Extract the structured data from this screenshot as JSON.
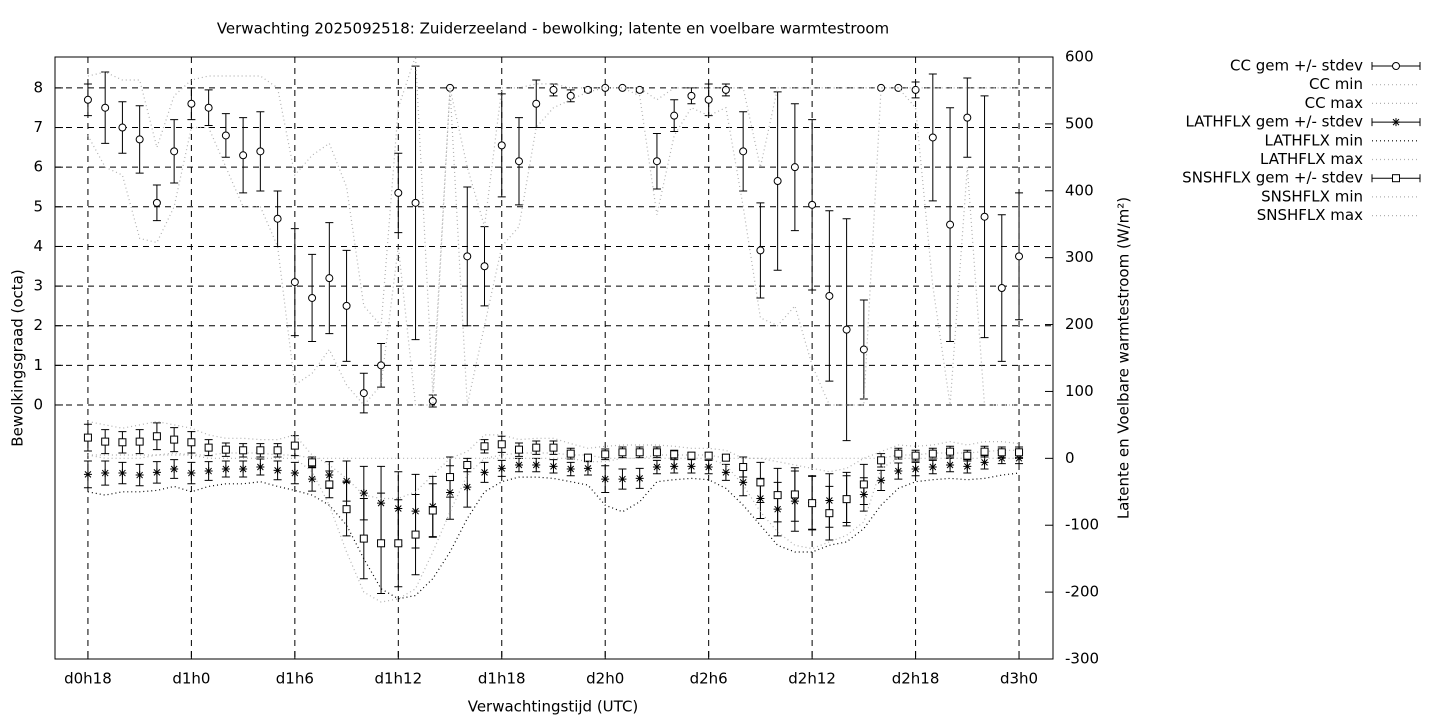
{
  "chart_data": {
    "type": "errorbar",
    "title": "Verwachting 2025092518: Zuiderzeeland - bewolking; latente en voelbare warmtestroom",
    "x_label": "Verwachtingstijd (UTC)",
    "y_label": "Bewolkingsgraad (octa)",
    "y2_label": "Latente en Voelbare warmtestroom (W/m²)",
    "x": [
      18,
      19,
      20,
      21,
      22,
      23,
      24,
      25,
      26,
      27,
      28,
      29,
      30,
      31,
      32,
      33,
      34,
      35,
      36,
      37,
      38,
      39,
      40,
      41,
      42,
      43,
      44,
      45,
      46,
      47,
      48,
      49,
      50,
      51,
      52,
      53,
      54,
      55,
      56,
      57,
      58,
      59,
      60,
      61,
      62,
      63,
      64,
      65,
      66,
      67,
      68,
      69,
      70,
      71,
      72
    ],
    "xlim": [
      16.09,
      73.97
    ],
    "xticks": [
      {
        "value": 18,
        "label": "d0h18"
      },
      {
        "value": 24,
        "label": "d1h0"
      },
      {
        "value": 30,
        "label": "d1h6"
      },
      {
        "value": 36,
        "label": "d1h12"
      },
      {
        "value": 42,
        "label": "d1h18"
      },
      {
        "value": 48,
        "label": "d2h0"
      },
      {
        "value": 54,
        "label": "d2h6"
      },
      {
        "value": 60,
        "label": "d2h12"
      },
      {
        "value": 66,
        "label": "d2h18"
      },
      {
        "value": 72,
        "label": "d3h0"
      }
    ],
    "ylim": [
      -6.41,
      8.78
    ],
    "yticks": [
      0,
      1,
      2,
      3,
      4,
      5,
      6,
      7,
      8
    ],
    "y2lim": [
      -300,
      600
    ],
    "y2ticks": [
      -300,
      -200,
      -100,
      0,
      100,
      200,
      300,
      400,
      500,
      600
    ],
    "grid": true,
    "legend": "top-right",
    "series": [
      {
        "name": "CC gem +/- stdev",
        "color": "#000000",
        "style": "errorbars",
        "marker": "circle",
        "values": [
          7.7,
          7.5,
          7.0,
          6.7,
          5.1,
          6.4,
          7.6,
          7.5,
          6.8,
          6.3,
          6.4,
          4.7,
          3.1,
          2.7,
          3.2,
          2.5,
          0.3,
          1.0,
          5.35,
          5.1,
          0.1,
          8.0,
          3.75,
          3.5,
          6.55,
          6.15,
          7.6,
          7.95,
          7.8,
          7.95,
          8.0,
          8.0,
          7.95,
          6.15,
          7.3,
          7.8,
          7.7,
          7.95,
          6.4,
          3.9,
          5.65,
          6.0,
          5.05,
          2.75,
          1.9,
          1.4,
          8.0,
          8.0,
          7.95,
          6.75,
          4.55,
          7.25,
          4.75,
          2.95,
          3.75
        ],
        "errors": [
          0.4,
          0.9,
          0.65,
          0.85,
          0.45,
          0.8,
          0.4,
          0.45,
          0.55,
          0.95,
          1.0,
          0.7,
          1.35,
          1.1,
          1.4,
          1.4,
          0.5,
          0.55,
          1.0,
          3.45,
          0.15,
          0,
          1.75,
          1.0,
          1.3,
          1.1,
          0.6,
          0.15,
          0.15,
          0.05,
          0,
          0,
          0.05,
          0.7,
          0.4,
          0.2,
          0.4,
          0.15,
          1.0,
          1.2,
          2.25,
          1.6,
          2.15,
          2.15,
          2.8,
          1.25,
          0,
          0,
          0.2,
          1.6,
          2.95,
          1.0,
          3.05,
          1.85,
          1.6
        ]
      },
      {
        "name": "CC min",
        "color": "#b0b0b0",
        "style": "dotted",
        "values": [
          6.8,
          6.0,
          5.8,
          4.2,
          4.1,
          5.0,
          7.0,
          7.0,
          6.0,
          5.0,
          5.0,
          4.0,
          0.5,
          0.8,
          1.4,
          0.5,
          0.0,
          0.5,
          4.0,
          0.0,
          0.0,
          8.0,
          0.0,
          2.0,
          4.0,
          4.5,
          7.0,
          7.5,
          7.7,
          7.9,
          8.0,
          8.0,
          7.8,
          4.8,
          6.8,
          7.5,
          7.3,
          7.5,
          5.0,
          2.2,
          2.0,
          2.5,
          1.0,
          0.0,
          0.0,
          0.0,
          8.0,
          8.0,
          7.5,
          3.0,
          0.0,
          6.0,
          0.0,
          0.0,
          0.0
        ]
      },
      {
        "name": "CC max",
        "color": "#b0b0b0",
        "style": "dotted",
        "values": [
          8.3,
          8.4,
          8.2,
          8.2,
          6.5,
          7.8,
          8.2,
          8.3,
          8.3,
          8.3,
          8.3,
          8.0,
          5.8,
          6.3,
          6.6,
          5.5,
          2.5,
          2.0,
          7.5,
          8.8,
          0.3,
          8.0,
          6.0,
          4.5,
          8.0,
          8.0,
          8.1,
          8.1,
          8.0,
          8.0,
          8.0,
          8.0,
          8.0,
          7.7,
          8.0,
          8.0,
          8.0,
          8.0,
          8.0,
          6.0,
          8.0,
          8.0,
          8.0,
          8.0,
          8.0,
          8.0,
          8.0,
          8.0,
          8.0,
          8.0,
          8.0,
          8.0,
          8.0,
          8.0,
          8.0
        ]
      },
      {
        "name": "LATHFLX gem +/- stdev",
        "color": "#000000",
        "style": "errorbars",
        "marker": "star",
        "axis": "y2",
        "values": [
          -24,
          -22,
          -22,
          -25,
          -21,
          -16,
          -22,
          -19,
          -16,
          -16,
          -13,
          -18,
          -22,
          -31,
          -25,
          -34,
          -52,
          -67,
          -75,
          -79,
          -72,
          -51,
          -43,
          -21,
          -15,
          -10,
          -10,
          -12,
          -16,
          -15,
          -31,
          -31,
          -30,
          -13,
          -12,
          -12,
          -13,
          -21,
          -36,
          -60,
          -76,
          -64,
          -66,
          -63,
          -61,
          -54,
          -33,
          -19,
          -16,
          -13,
          -10,
          -12,
          -6,
          0,
          0
        ],
        "errors": [
          20,
          18,
          16,
          16,
          16,
          14,
          16,
          14,
          12,
          12,
          12,
          14,
          16,
          18,
          20,
          30,
          40,
          55,
          55,
          55,
          45,
          40,
          30,
          15,
          12,
          10,
          10,
          10,
          10,
          10,
          20,
          15,
          15,
          10,
          10,
          10,
          10,
          12,
          20,
          30,
          40,
          45,
          40,
          40,
          35,
          25,
          15,
          12,
          10,
          10,
          10,
          10,
          10,
          8,
          8
        ]
      },
      {
        "name": "LATHFLX min",
        "color": "#000000",
        "style": "dotted",
        "axis": "y2",
        "values": [
          -50,
          -55,
          -50,
          -50,
          -48,
          -42,
          -50,
          -42,
          -38,
          -38,
          -35,
          -42,
          -48,
          -55,
          -70,
          -100,
          -150,
          -195,
          -210,
          -205,
          -180,
          -140,
          -90,
          -50,
          -35,
          -28,
          -28,
          -30,
          -35,
          -40,
          -70,
          -80,
          -65,
          -35,
          -32,
          -30,
          -32,
          -45,
          -70,
          -100,
          -130,
          -140,
          -140,
          -130,
          -125,
          -105,
          -70,
          -45,
          -35,
          -32,
          -30,
          -32,
          -30,
          -25,
          -22
        ]
      },
      {
        "name": "LATHFLX max",
        "color": "#b0b0b0",
        "style": "dotted",
        "axis": "y2",
        "values": [
          5,
          5,
          5,
          5,
          5,
          8,
          5,
          5,
          8,
          8,
          8,
          5,
          5,
          0,
          0,
          0,
          0,
          0,
          0,
          0,
          0,
          0,
          0,
          0,
          5,
          8,
          8,
          8,
          5,
          5,
          0,
          0,
          0,
          5,
          5,
          5,
          5,
          0,
          0,
          0,
          0,
          0,
          0,
          0,
          0,
          0,
          0,
          5,
          5,
          8,
          8,
          8,
          10,
          12,
          12
        ]
      },
      {
        "name": "SNSHFLX gem +/- stdev",
        "color": "#000000",
        "style": "errorbars",
        "marker": "square",
        "axis": "y2",
        "values": [
          31,
          25,
          24,
          25,
          33,
          28,
          24,
          16,
          13,
          12,
          12,
          12,
          19,
          -6,
          -39,
          -76,
          -120,
          -127,
          -127,
          -114,
          -78,
          -28,
          -10,
          18,
          21,
          13,
          16,
          16,
          7,
          1,
          6,
          9,
          9,
          9,
          6,
          4,
          4,
          1,
          -13,
          -36,
          -55,
          -54,
          -67,
          -82,
          -61,
          -39,
          -3,
          7,
          4,
          7,
          10,
          4,
          10,
          9,
          9
        ],
        "errors": [
          20,
          18,
          16,
          18,
          20,
          18,
          16,
          12,
          10,
          10,
          10,
          10,
          15,
          8,
          20,
          40,
          60,
          75,
          65,
          60,
          40,
          30,
          10,
          10,
          12,
          10,
          10,
          10,
          8,
          5,
          8,
          8,
          8,
          8,
          6,
          5,
          5,
          5,
          15,
          30,
          40,
          40,
          40,
          40,
          40,
          30,
          10,
          8,
          8,
          8,
          8,
          8,
          8,
          8,
          8
        ]
      },
      {
        "name": "SNSHFLX min",
        "color": "#b0b0b0",
        "style": "dotted",
        "axis": "y2",
        "values": [
          5,
          0,
          0,
          0,
          5,
          5,
          5,
          0,
          0,
          0,
          0,
          0,
          0,
          -20,
          -70,
          -140,
          -200,
          -215,
          -210,
          -195,
          -140,
          -80,
          -25,
          0,
          0,
          0,
          0,
          0,
          0,
          -5,
          -5,
          0,
          0,
          0,
          0,
          0,
          0,
          -10,
          -40,
          -80,
          -110,
          -130,
          -135,
          -125,
          -115,
          -95,
          -15,
          0,
          0,
          0,
          0,
          0,
          0,
          0,
          0
        ]
      },
      {
        "name": "SNSHFLX max",
        "color": "#b0b0b0",
        "style": "dotted",
        "axis": "y2",
        "values": [
          55,
          50,
          45,
          50,
          55,
          50,
          45,
          35,
          30,
          30,
          28,
          28,
          35,
          5,
          -10,
          -30,
          -55,
          -60,
          -60,
          -50,
          -25,
          0,
          10,
          35,
          35,
          28,
          30,
          30,
          22,
          15,
          18,
          20,
          20,
          20,
          18,
          15,
          15,
          12,
          0,
          0,
          -5,
          -10,
          -15,
          -20,
          -15,
          0,
          10,
          20,
          18,
          20,
          25,
          20,
          25,
          25,
          22
        ]
      }
    ]
  }
}
